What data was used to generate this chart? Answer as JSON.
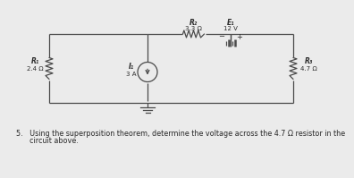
{
  "bg_color": "#ebebeb",
  "text_question_1": "5.   Using the superposition theorem, determine the voltage across the 4.7 Ω resistor in the",
  "text_question_2": "      circuit above.",
  "R1_label": "R₁",
  "R1_val": "2.4 Ω",
  "R2_label": "R₂",
  "R2_val": "3.3 Ω",
  "R3_label": "R₃",
  "R3_val": "4.7 Ω",
  "I1_label": "I₁",
  "I1_val": "3 A",
  "E1_label": "E₁",
  "E1_val": "12 V",
  "line_color": "#4a4a4a",
  "text_color": "#2a2a2a",
  "font_size": 5.5,
  "question_font_size": 5.8,
  "lw": 0.9
}
